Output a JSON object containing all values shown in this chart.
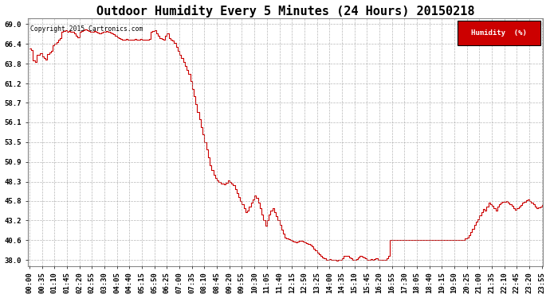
{
  "title": "Outdoor Humidity Every 5 Minutes (24 Hours) 20150218",
  "copyright_text": "Copyright 2015 Cartronics.com",
  "legend_label": "Humidity  (%)",
  "legend_bg": "#cc0000",
  "legend_fg": "#ffffff",
  "line_color": "#cc0000",
  "bg_color": "#ffffff",
  "plot_bg": "#ffffff",
  "grid_color": "#999999",
  "title_color": "#000000",
  "yticks": [
    38.0,
    40.6,
    43.2,
    45.8,
    48.3,
    50.9,
    53.5,
    56.1,
    58.7,
    61.2,
    63.8,
    66.4,
    69.0
  ],
  "ylim": [
    37.2,
    69.8
  ],
  "title_fontsize": 11,
  "tick_fontsize": 6.5,
  "humidity_data": [
    65.8,
    65.6,
    64.2,
    64.0,
    65.0,
    65.0,
    65.2,
    64.8,
    64.5,
    64.3,
    65.1,
    65.3,
    65.5,
    66.2,
    66.4,
    66.6,
    67.0,
    67.2,
    68.0,
    68.1,
    68.2,
    68.0,
    68.1,
    68.0,
    68.0,
    67.8,
    67.5,
    67.3,
    68.0,
    68.1,
    68.2,
    68.3,
    68.2,
    68.1,
    68.0,
    68.0,
    68.1,
    68.0,
    67.9,
    67.8,
    67.9,
    68.0,
    68.0,
    68.1,
    68.0,
    67.9,
    67.8,
    67.7,
    67.5,
    67.3,
    67.2,
    67.1,
    67.0,
    67.0,
    67.1,
    67.0,
    67.0,
    67.0,
    67.0,
    67.1,
    67.0,
    67.0,
    67.1,
    67.0,
    67.0,
    67.0,
    67.0,
    67.1,
    68.0,
    68.1,
    68.2,
    67.8,
    67.5,
    67.2,
    67.1,
    67.0,
    67.5,
    67.8,
    67.2,
    67.0,
    66.8,
    66.5,
    66.0,
    65.5,
    65.0,
    64.5,
    64.0,
    63.5,
    63.0,
    62.5,
    61.5,
    60.5,
    59.5,
    58.5,
    57.5,
    56.5,
    55.5,
    54.5,
    53.5,
    52.5,
    51.5,
    50.5,
    49.8,
    49.2,
    48.8,
    48.5,
    48.3,
    48.1,
    48.0,
    47.9,
    48.2,
    48.5,
    48.3,
    48.0,
    47.8,
    47.3,
    46.8,
    46.3,
    45.8,
    45.3,
    44.8,
    44.3,
    44.5,
    45.0,
    45.5,
    46.0,
    46.5,
    46.2,
    45.5,
    44.8,
    44.0,
    43.2,
    42.5,
    43.2,
    44.0,
    44.5,
    44.8,
    44.3,
    43.8,
    43.2,
    42.6,
    42.0,
    41.5,
    41.0,
    40.8,
    40.7,
    40.6,
    40.5,
    40.4,
    40.3,
    40.4,
    40.5,
    40.5,
    40.4,
    40.3,
    40.2,
    40.1,
    40.0,
    39.8,
    39.5,
    39.3,
    39.0,
    38.8,
    38.5,
    38.3,
    38.2,
    38.0,
    38.0,
    38.1,
    38.0,
    38.0,
    38.0,
    37.9,
    38.0,
    38.0,
    38.2,
    38.5,
    38.6,
    38.5,
    38.3,
    38.2,
    38.0,
    38.0,
    38.1,
    38.3,
    38.5,
    38.4,
    38.3,
    38.2,
    38.0,
    38.0,
    38.1,
    38.0,
    38.1,
    38.2,
    38.0,
    38.0,
    38.0,
    38.0,
    38.0,
    38.2,
    38.5,
    40.6,
    40.6,
    40.6,
    40.6,
    40.6,
    40.6,
    40.6,
    40.6,
    40.6,
    40.6,
    40.6,
    40.6,
    40.6,
    40.6,
    40.6,
    40.6,
    40.6,
    40.6,
    40.6,
    40.6,
    40.6,
    40.6,
    40.6,
    40.6,
    40.6,
    40.6,
    40.6,
    40.6,
    40.6,
    40.6,
    40.6,
    40.6,
    40.6,
    40.6,
    40.6,
    40.6,
    40.6,
    40.6,
    40.6,
    40.6,
    40.6,
    40.6,
    40.8,
    41.0,
    41.3,
    41.7,
    42.1,
    42.6,
    43.0,
    43.4,
    43.9,
    44.3,
    44.7,
    44.5,
    45.0,
    45.5,
    45.3,
    45.1,
    44.8,
    44.5,
    45.0,
    45.3,
    45.5,
    45.6,
    45.7,
    45.8,
    45.5,
    45.3,
    45.1,
    44.8,
    44.6,
    44.8,
    45.0,
    45.2,
    45.5,
    45.7,
    45.9,
    46.0,
    45.8,
    45.5,
    45.3,
    45.0,
    44.8,
    44.9,
    45.0,
    45.2
  ],
  "xtick_labels": [
    "00:00",
    "00:35",
    "01:10",
    "01:45",
    "02:20",
    "02:55",
    "03:30",
    "04:05",
    "04:40",
    "05:15",
    "05:50",
    "06:25",
    "07:00",
    "07:35",
    "08:10",
    "08:45",
    "09:20",
    "09:55",
    "10:30",
    "11:05",
    "11:40",
    "12:15",
    "12:50",
    "13:25",
    "14:00",
    "14:35",
    "15:10",
    "15:45",
    "16:20",
    "16:55",
    "17:30",
    "18:05",
    "18:40",
    "19:15",
    "19:50",
    "20:25",
    "21:00",
    "21:35",
    "22:10",
    "22:45",
    "23:20",
    "23:55"
  ]
}
